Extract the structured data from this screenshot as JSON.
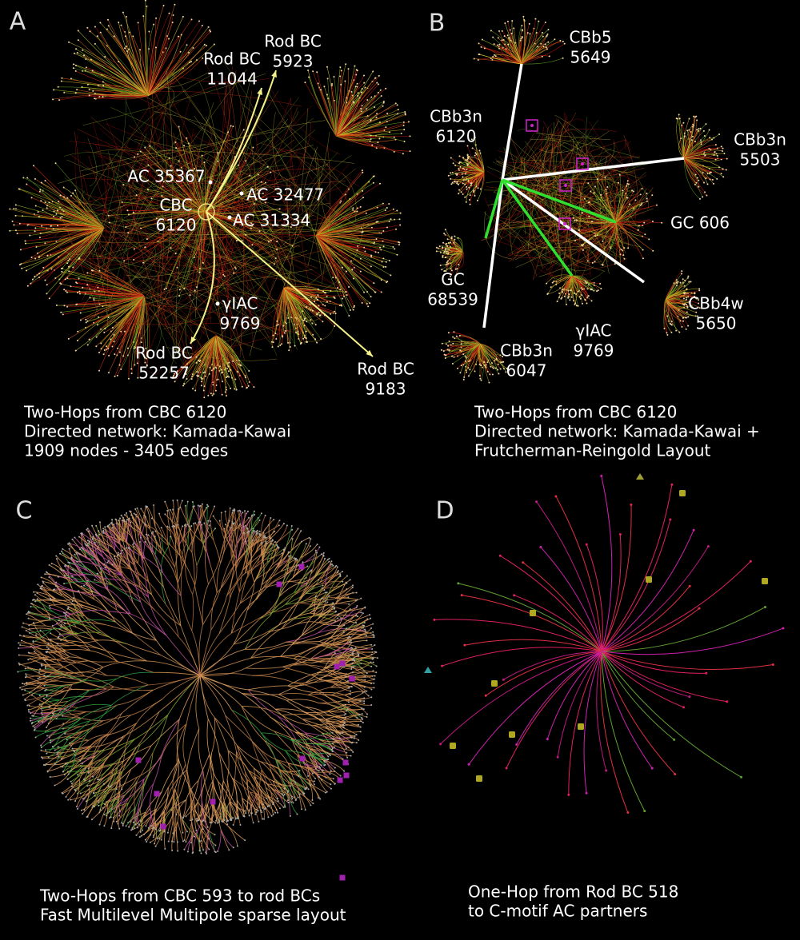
{
  "panels": [
    {
      "label": "A",
      "nodes": [
        {
          "lines": [
            "Rod BC",
            "5923"
          ]
        },
        {
          "lines": [
            "Rod BC",
            "11044"
          ]
        },
        {
          "lines": [
            "AC 35367"
          ]
        },
        {
          "lines": [
            "AC 32477"
          ]
        },
        {
          "lines": [
            "CBC",
            "6120"
          ]
        },
        {
          "lines": [
            "AC 31334"
          ]
        },
        {
          "lines": [
            "γIAC",
            "9769"
          ]
        },
        {
          "lines": [
            "Rod BC",
            "52257"
          ]
        },
        {
          "lines": [
            "Rod BC",
            "9183"
          ]
        }
      ],
      "caption": [
        "Two-Hops from CBC 6120",
        "Directed network: Kamada-Kawai",
        "1909 nodes - 3405 edges"
      ]
    },
    {
      "label": "B",
      "nodes": [
        {
          "lines": [
            "CBb5",
            "5649"
          ]
        },
        {
          "lines": [
            "CBb3n",
            "6120"
          ]
        },
        {
          "lines": [
            "CBb3n",
            "5503"
          ]
        },
        {
          "lines": [
            "GC 606"
          ]
        },
        {
          "lines": [
            "GC",
            "68539"
          ]
        },
        {
          "lines": [
            "CBb4w",
            "5650"
          ]
        },
        {
          "lines": [
            "γIAC",
            "9769"
          ]
        },
        {
          "lines": [
            "CBb3n",
            "6047"
          ]
        }
      ],
      "caption": [
        "Two-Hops from CBC 6120",
        "Directed network: Kamada-Kawai +",
        "Frutcherman-Reingold Layout"
      ]
    },
    {
      "label": "C",
      "nodes": [],
      "caption": [
        "Two-Hops from CBC 593 to rod BCs",
        "Fast Multilevel Multipole sparse layout"
      ]
    },
    {
      "label": "D",
      "nodes": [],
      "caption": [
        "One-Hop from Rod BC 518",
        "to C-motif AC partners"
      ]
    }
  ]
}
